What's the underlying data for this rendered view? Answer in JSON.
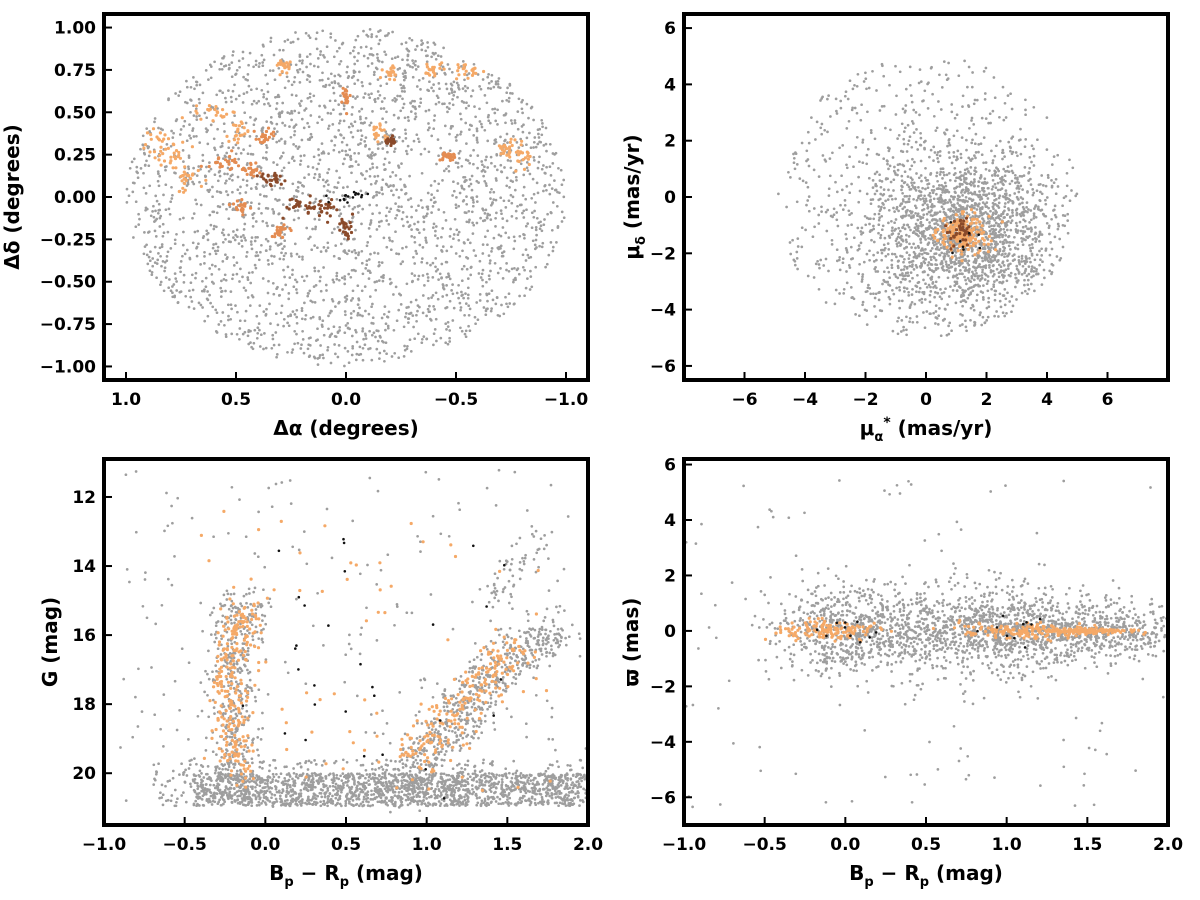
{
  "figure": {
    "layout": "2x2 grid of scatter panels"
  },
  "colors": {
    "field_stars": "#9e9e9e",
    "members_light": "#f5a967",
    "members_mid": "#e48c52",
    "members_dark": "#8a4a2a",
    "highlight_black": "#111111",
    "frame": "#000000"
  },
  "chart_data": [
    {
      "type": "scatter",
      "id": "sky",
      "xlabel_parts": [
        "Δα (degrees)"
      ],
      "ylabel_parts": [
        "Δδ (degrees)"
      ],
      "xlim": [
        1.1,
        -1.1
      ],
      "ylim": [
        -1.08,
        1.08
      ],
      "x_inverted": true,
      "xticks": [
        1.0,
        0.5,
        0.0,
        -0.5,
        -1.0
      ],
      "xtick_labels": [
        "1.0",
        "0.5",
        "0.0",
        "−0.5",
        "−1.0"
      ],
      "yticks": [
        1.0,
        0.75,
        0.5,
        0.25,
        0.0,
        -0.25,
        -0.5,
        -0.75,
        -1.0
      ],
      "ytick_labels": [
        "1.00",
        "0.75",
        "0.50",
        "0.25",
        "0.00",
        "−0.25",
        "−0.50",
        "−0.75",
        "−1.00"
      ],
      "grid": false,
      "series": [
        {
          "role": "field",
          "color": "#9e9e9e",
          "distribution": "uniform disk",
          "center": [
            0,
            0
          ],
          "radii": [
            1.0,
            1.0
          ],
          "count": 2600
        },
        {
          "role": "members",
          "color": "#f5a967",
          "distribution": "gaussian clumps",
          "clumps": [
            [
              0.86,
              0.32,
              0.04,
              0.06
            ],
            [
              0.78,
              0.25,
              0.03,
              0.04
            ],
            [
              0.6,
              0.5,
              0.06,
              0.03
            ],
            [
              0.5,
              0.38,
              0.03,
              0.03
            ],
            [
              0.72,
              0.1,
              0.03,
              0.04
            ],
            [
              -0.8,
              0.25,
              0.03,
              0.04
            ],
            [
              -0.73,
              0.3,
              0.03,
              0.03
            ],
            [
              -0.55,
              0.75,
              0.03,
              0.02
            ],
            [
              -0.4,
              0.75,
              0.02,
              0.02
            ],
            [
              -0.2,
              0.73,
              0.02,
              0.02
            ],
            [
              -0.15,
              0.38,
              0.02,
              0.03
            ],
            [
              0.28,
              0.77,
              0.02,
              0.02
            ]
          ],
          "count": 260
        },
        {
          "role": "members",
          "color": "#e48c52",
          "distribution": "gaussian clumps",
          "clumps": [
            [
              0.55,
              0.2,
              0.04,
              0.03
            ],
            [
              0.43,
              0.16,
              0.03,
              0.03
            ],
            [
              0.37,
              0.36,
              0.02,
              0.02
            ],
            [
              0.0,
              0.6,
              0.01,
              0.03
            ],
            [
              -0.47,
              0.23,
              0.02,
              0.02
            ],
            [
              0.48,
              -0.05,
              0.02,
              0.02
            ],
            [
              0.3,
              -0.2,
              0.02,
              0.02
            ]
          ],
          "count": 150
        },
        {
          "role": "members",
          "color": "#8a4a2a",
          "distribution": "gaussian clumps",
          "clumps": [
            [
              0.2,
              -0.05,
              0.04,
              0.03
            ],
            [
              0.1,
              -0.07,
              0.03,
              0.03
            ],
            [
              0.0,
              -0.18,
              0.02,
              0.03
            ],
            [
              0.33,
              0.11,
              0.03,
              0.02
            ],
            [
              -0.2,
              0.33,
              0.01,
              0.01
            ]
          ],
          "count": 120
        },
        {
          "role": "highlight",
          "color": "#111111",
          "distribution": "gaussian clumps",
          "clumps": [
            [
              0.02,
              -0.01,
              0.04,
              0.02
            ],
            [
              -0.04,
              0.02,
              0.02,
              0.01
            ]
          ],
          "count": 18
        }
      ]
    },
    {
      "type": "scatter",
      "id": "proper-motion",
      "xlabel_parts": [
        "μ",
        "α",
        "*",
        " (mas/yr)"
      ],
      "ylabel_parts": [
        "μ",
        "δ",
        " (mas/yr)"
      ],
      "xlim": [
        -8,
        8
      ],
      "ylim": [
        -6.5,
        6.5
      ],
      "x_inverted": false,
      "xticks": [
        -6,
        -4,
        -2,
        0,
        2,
        4,
        6
      ],
      "xtick_labels": [
        "−6",
        "−4",
        "−2",
        "0",
        "2",
        "4",
        "6"
      ],
      "yticks": [
        6,
        4,
        2,
        0,
        -2,
        -4,
        -6
      ],
      "ytick_labels": [
        "6",
        "4",
        "2",
        "0",
        "−2",
        "−4",
        "−6"
      ],
      "grid": false,
      "series": [
        {
          "role": "field",
          "color": "#9e9e9e",
          "distribution": "clipped gaussian",
          "center": [
            1.2,
            -1.3
          ],
          "sigma": [
            1.6,
            1.4
          ],
          "clip_radius": [
            5.0,
            5.0
          ],
          "clip_center": [
            0,
            0
          ],
          "count": 1800
        },
        {
          "role": "field",
          "color": "#9e9e9e",
          "distribution": "uniform disk",
          "center": [
            0,
            0
          ],
          "radii": [
            5.0,
            5.0
          ],
          "count": 650
        },
        {
          "role": "members",
          "color": "#f5a967",
          "distribution": "gaussian clumps",
          "clumps": [
            [
              1.2,
              -1.3,
              0.45,
              0.35
            ]
          ],
          "count": 180
        },
        {
          "role": "members",
          "color": "#8a4a2a",
          "distribution": "gaussian clumps",
          "clumps": [
            [
              1.1,
              -1.2,
              0.3,
              0.25
            ]
          ],
          "count": 40
        },
        {
          "role": "highlight",
          "color": "#111111",
          "distribution": "gaussian clumps",
          "clumps": [
            [
              1.2,
              -1.3,
              0.3,
              0.3
            ]
          ],
          "count": 8
        }
      ]
    },
    {
      "type": "scatter",
      "id": "cmd-g",
      "xlabel_parts": [
        "B",
        "p",
        " − ",
        "R",
        "p",
        " (mag)"
      ],
      "ylabel_parts": [
        "G (mag)"
      ],
      "xlim": [
        -1.0,
        2.0
      ],
      "ylim": [
        10.9,
        21.5
      ],
      "y_inverted": true,
      "xticks": [
        -1.0,
        -0.5,
        0.0,
        0.5,
        1.0,
        1.5,
        2.0
      ],
      "xtick_labels": [
        "−1.0",
        "−0.5",
        "0.0",
        "0.5",
        "1.0",
        "1.5",
        "2.0"
      ],
      "yticks": [
        20,
        18,
        16,
        14,
        12
      ],
      "ytick_labels": [
        "20",
        "18",
        "16",
        "14",
        "12"
      ],
      "grid": false,
      "series": [
        {
          "role": "field",
          "color": "#9e9e9e",
          "distribution": "band",
          "x_range": [
            -0.45,
            2.0
          ],
          "y_range": [
            20.0,
            20.95
          ],
          "count": 1500
        },
        {
          "role": "field",
          "color": "#9e9e9e",
          "distribution": "band",
          "x_range": [
            -0.7,
            2.0
          ],
          "y_range": [
            19.6,
            20.95
          ],
          "count": 400
        },
        {
          "role": "field",
          "color": "#9e9e9e",
          "distribution": "track",
          "points": [
            [
              -0.2,
              20.6
            ],
            [
              -0.22,
              19.0
            ],
            [
              -0.2,
              17.5
            ],
            [
              -0.18,
              16.0
            ],
            [
              -0.15,
              15.0
            ]
          ],
          "spread": [
            0.09,
            0.3
          ],
          "count": 450
        },
        {
          "role": "field",
          "color": "#9e9e9e",
          "distribution": "track",
          "points": [
            [
              0.8,
              20.6
            ],
            [
              1.0,
              19.5
            ],
            [
              1.15,
              18.6
            ],
            [
              1.35,
              17.5
            ],
            [
              1.55,
              16.6
            ],
            [
              1.8,
              15.8
            ]
          ],
          "spread": [
            0.1,
            0.3
          ],
          "count": 650
        },
        {
          "role": "field",
          "color": "#9e9e9e",
          "distribution": "track",
          "points": [
            [
              1.4,
              15.0
            ],
            [
              1.55,
              14.0
            ],
            [
              1.7,
              13.0
            ]
          ],
          "spread": [
            0.06,
            0.25
          ],
          "count": 60
        },
        {
          "role": "field",
          "color": "#9e9e9e",
          "distribution": "scatter-box",
          "x_range": [
            -0.9,
            2.0
          ],
          "y_range": [
            11.2,
            20.9
          ],
          "count": 200
        },
        {
          "role": "members",
          "color": "#f5a967",
          "distribution": "track",
          "points": [
            [
              -0.15,
              20.0
            ],
            [
              -0.2,
              18.8
            ],
            [
              -0.22,
              17.5
            ],
            [
              -0.2,
              16.2
            ],
            [
              -0.12,
              15.2
            ]
          ],
          "spread": [
            0.06,
            0.35
          ],
          "count": 260
        },
        {
          "role": "members",
          "color": "#f5a967",
          "distribution": "track",
          "points": [
            [
              0.9,
              19.5
            ],
            [
              1.05,
              18.8
            ],
            [
              1.25,
              17.8
            ],
            [
              1.4,
              17.0
            ],
            [
              1.6,
              16.3
            ]
          ],
          "spread": [
            0.08,
            0.3
          ],
          "count": 200
        },
        {
          "role": "members",
          "color": "#f5a967",
          "distribution": "scatter-box",
          "x_range": [
            -0.4,
            1.8
          ],
          "y_range": [
            12.4,
            20.5
          ],
          "count": 70
        },
        {
          "role": "highlight",
          "color": "#111111",
          "distribution": "scatter-box",
          "x_range": [
            -0.3,
            1.5
          ],
          "y_range": [
            13.0,
            20.8
          ],
          "count": 30
        }
      ]
    },
    {
      "type": "scatter",
      "id": "parallax",
      "xlabel_parts": [
        "B",
        "p",
        " − ",
        "R",
        "p",
        " (mag)"
      ],
      "ylabel_parts": [
        "ϖ (mas)"
      ],
      "xlim": [
        -1.0,
        2.0
      ],
      "ylim": [
        -7.0,
        6.2
      ],
      "xticks": [
        -1.0,
        -0.5,
        0.0,
        0.5,
        1.0,
        1.5,
        2.0
      ],
      "xtick_labels": [
        "−1.0",
        "−0.5",
        "0.0",
        "0.5",
        "1.0",
        "1.5",
        "2.0"
      ],
      "yticks": [
        6,
        4,
        2,
        0,
        -2,
        -4,
        -6
      ],
      "ytick_labels": [
        "6",
        "4",
        "2",
        "0",
        "−2",
        "−4",
        "−6"
      ],
      "grid": false,
      "series": [
        {
          "role": "field",
          "color": "#9e9e9e",
          "distribution": "gaussian clumps",
          "clumps": [
            [
              0.0,
              0.0,
              0.22,
              0.8
            ],
            [
              0.55,
              0.0,
              0.3,
              0.85
            ],
            [
              1.05,
              0.0,
              0.25,
              0.75
            ],
            [
              1.6,
              0.0,
              0.3,
              0.5
            ]
          ],
          "count": 2200
        },
        {
          "role": "field",
          "color": "#9e9e9e",
          "distribution": "scatter-box",
          "x_range": [
            -1.0,
            2.0
          ],
          "y_range": [
            -6.5,
            5.5
          ],
          "count": 120
        },
        {
          "role": "members",
          "color": "#f5a967",
          "distribution": "gaussian clumps",
          "clumps": [
            [
              -0.1,
              0.0,
              0.15,
              0.18
            ],
            [
              1.1,
              0.0,
              0.2,
              0.15
            ],
            [
              1.5,
              0.0,
              0.15,
              0.05
            ]
          ],
          "count": 420
        },
        {
          "role": "highlight",
          "color": "#111111",
          "distribution": "gaussian clumps",
          "clumps": [
            [
              0.0,
              0.0,
              0.1,
              0.2
            ],
            [
              1.0,
              0.1,
              0.15,
              0.25
            ]
          ],
          "count": 20
        }
      ]
    }
  ]
}
